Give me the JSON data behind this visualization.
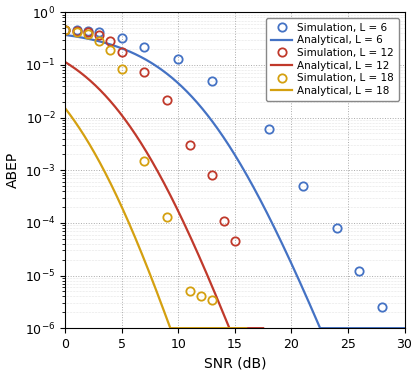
{
  "title": "",
  "xlabel": "SNR (dB)",
  "ylabel": "ABEP",
  "xlim": [
    0,
    30
  ],
  "ylim": [
    1e-06,
    1.5
  ],
  "colors": {
    "L6": "#4472C4",
    "L12": "#C0392B",
    "L18": "#D4A010"
  },
  "sim_L6_x": [
    0,
    1,
    2,
    3,
    5,
    7,
    10,
    13,
    18,
    21,
    24,
    26,
    28
  ],
  "sim_L6_y": [
    0.47,
    0.46,
    0.44,
    0.42,
    0.32,
    0.22,
    0.13,
    0.05,
    0.006,
    0.0005,
    8e-05,
    1.2e-05,
    2.5e-06
  ],
  "sim_L12_x": [
    0,
    1,
    2,
    3,
    4,
    5,
    7,
    9,
    11,
    13,
    14,
    15
  ],
  "sim_L12_y": [
    0.47,
    0.45,
    0.42,
    0.37,
    0.28,
    0.18,
    0.075,
    0.022,
    0.003,
    0.0008,
    0.00011,
    4.5e-05
  ],
  "sim_L18_x": [
    0,
    1,
    2,
    3,
    4,
    5,
    7,
    9,
    11,
    12,
    13
  ],
  "sim_L18_y": [
    0.46,
    0.43,
    0.38,
    0.29,
    0.19,
    0.085,
    0.0015,
    0.00013,
    5e-06,
    4e-06,
    3.5e-06
  ],
  "legend_entries": [
    "Simulation, L = 6",
    "Analytical, L = 6",
    "Simulation, L = 12",
    "Analytical, L = 12",
    "Simulation, L = 18",
    "Analytical, L = 18"
  ]
}
